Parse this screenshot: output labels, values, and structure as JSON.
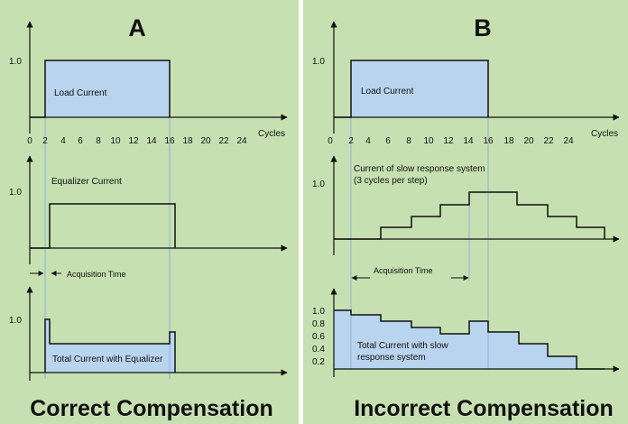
{
  "colors": {
    "panel_bg": "#c7e0b1",
    "fill": "#b9d4ee",
    "guide": "#8db4d8",
    "ink": "#111111",
    "border": "#ffffff"
  },
  "panels": {
    "a": {
      "letter": "A",
      "caption": "Correct Compensation",
      "load_value": "1.0",
      "load_label": "Load Current",
      "x_ticks": [
        "0",
        "2",
        "4",
        "6",
        "8",
        "10",
        "12",
        "14",
        "16",
        "18",
        "20",
        "22",
        "24"
      ],
      "x_unit": "Cycles",
      "eq_value": "1.0",
      "eq_label": "Equalizer Current",
      "acq_label": "Acquisition Time",
      "total_value": "1.0",
      "total_label": "Total Current with Equalizer"
    },
    "b": {
      "letter": "B",
      "caption": "Incorrect Compensation",
      "load_value": "1.0",
      "load_label": "Load Current",
      "x_ticks": [
        "0",
        "2",
        "4",
        "6",
        "8",
        "10",
        "12",
        "14",
        "16",
        "18",
        "20",
        "22",
        "24"
      ],
      "x_unit": "Cycles",
      "slow_value": "1.0",
      "slow_label_1": "Current of slow response system",
      "slow_label_2": "(3 cycles per step)",
      "acq_label": "Acquisition Time",
      "total_ticks": [
        "1.0",
        "0.8",
        "0.6",
        "0.4",
        "0.2"
      ],
      "total_label_1": "Total Current with slow",
      "total_label_2": "response system"
    }
  },
  "chart_data": [
    {
      "panel": "A",
      "type": "line",
      "x_unit": "Cycles",
      "series": [
        {
          "name": "Load Current",
          "x": [
            0,
            2,
            2,
            16,
            16,
            24
          ],
          "y": [
            0,
            0,
            1.0,
            1.0,
            0,
            0
          ]
        },
        {
          "name": "Equalizer Current",
          "x": [
            0,
            2.5,
            2.5,
            16.5,
            16.5,
            24
          ],
          "y": [
            0,
            0,
            1.0,
            1.0,
            0,
            0
          ]
        },
        {
          "name": "Total Current with Equalizer",
          "x": [
            2,
            2,
            2.5,
            2.5,
            16,
            16,
            16.5,
            16.5
          ],
          "y": [
            0,
            1.0,
            1.0,
            0.6,
            0.6,
            1.0,
            1.0,
            0
          ]
        }
      ]
    },
    {
      "panel": "B",
      "type": "line",
      "x_unit": "Cycles",
      "series": [
        {
          "name": "Load Current",
          "x": [
            0,
            2,
            2,
            16,
            16,
            26
          ],
          "y": [
            0,
            0,
            1.0,
            1.0,
            0,
            0
          ]
        },
        {
          "name": "Current of slow response system (3 cycles per step)",
          "x": [
            5,
            8,
            11,
            14,
            17,
            20,
            23,
            26
          ],
          "y": [
            0.2,
            0.4,
            0.6,
            0.8,
            0.8,
            0.6,
            0.4,
            0.2
          ]
        },
        {
          "name": "Total Current with slow response system",
          "x": [
            2,
            5,
            8,
            11,
            14,
            16,
            19,
            22,
            25,
            26
          ],
          "y": [
            1.0,
            0.9,
            0.8,
            0.7,
            0.6,
            0.8,
            0.6,
            0.4,
            0.2,
            0
          ]
        }
      ]
    }
  ]
}
